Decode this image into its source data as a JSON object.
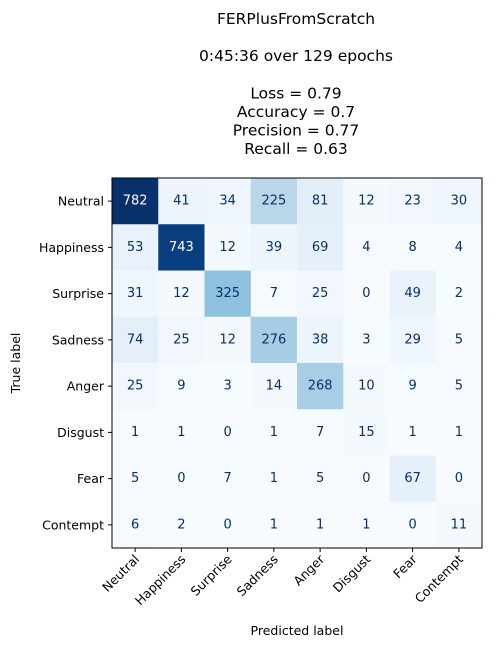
{
  "chart_data": {
    "type": "heatmap",
    "title": [
      "FERPlusFromScratch",
      "",
      "0:45:36 over 129 epochs",
      "",
      "Loss = 0.79",
      "Accuracy = 0.7",
      "Precision = 0.77",
      "Recall = 0.63"
    ],
    "xlabel": "Predicted label",
    "ylabel": "True label",
    "x_categories": [
      "Neutral",
      "Happiness",
      "Surprise",
      "Sadness",
      "Anger",
      "Disgust",
      "Fear",
      "Contempt"
    ],
    "y_categories": [
      "Neutral",
      "Happiness",
      "Surprise",
      "Sadness",
      "Anger",
      "Disgust",
      "Fear",
      "Contempt"
    ],
    "values": [
      [
        782,
        41,
        34,
        225,
        81,
        12,
        23,
        30
      ],
      [
        53,
        743,
        12,
        39,
        69,
        4,
        8,
        4
      ],
      [
        31,
        12,
        325,
        7,
        25,
        0,
        49,
        2
      ],
      [
        74,
        25,
        12,
        276,
        38,
        3,
        29,
        5
      ],
      [
        25,
        9,
        3,
        14,
        268,
        10,
        9,
        5
      ],
      [
        1,
        1,
        0,
        1,
        7,
        15,
        1,
        1
      ],
      [
        5,
        0,
        7,
        1,
        5,
        0,
        67,
        0
      ],
      [
        6,
        2,
        0,
        1,
        1,
        1,
        0,
        11
      ]
    ],
    "colormap": "Blues",
    "color_low": "#f7fbff",
    "color_high": "#08306b",
    "text_color_dark": "#08306b",
    "text_color_light": "#ffffff",
    "grid": false
  }
}
